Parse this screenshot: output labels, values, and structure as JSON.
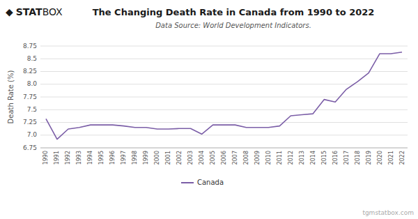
{
  "chart_data": {
    "type": "line",
    "title": "The Changing Death Rate in Canada from 1990 to 2022",
    "subtitle": "Data Source: World Development Indicators.",
    "y_label": "Death Rate (%)",
    "annotations": [
      "◆",
      "STAT",
      "BOX",
      "tgmstatbox.com"
    ],
    "x": [
      1990,
      1991,
      1992,
      1993,
      1994,
      1995,
      1996,
      1997,
      1998,
      1999,
      2000,
      2001,
      2002,
      2003,
      2004,
      2005,
      2006,
      2007,
      2008,
      2009,
      2010,
      2011,
      2012,
      2013,
      2014,
      2015,
      2016,
      2017,
      2018,
      2019,
      2020,
      2021,
      2022
    ],
    "series": [
      {
        "name": "Canada",
        "color": "#7B5EA7",
        "values": [
          7.32,
          6.92,
          7.12,
          7.15,
          7.2,
          7.2,
          7.2,
          7.18,
          7.15,
          7.15,
          7.12,
          7.12,
          7.13,
          7.13,
          7.02,
          7.2,
          7.2,
          7.2,
          7.15,
          7.15,
          7.15,
          7.18,
          7.38,
          7.4,
          7.42,
          7.7,
          7.65,
          7.9,
          8.05,
          8.22,
          8.6,
          8.6,
          8.63
        ]
      }
    ],
    "xlim": [
      1989.5,
      2022.5
    ],
    "xticks": [
      1990,
      1991,
      1992,
      1993,
      1994,
      1995,
      1996,
      1997,
      1998,
      1999,
      2000,
      2001,
      2002,
      2003,
      2004,
      2005,
      2006,
      2007,
      2008,
      2009,
      2010,
      2011,
      2012,
      2013,
      2014,
      2015,
      2016,
      2017,
      2018,
      2019,
      2020,
      2021,
      2022
    ],
    "ylim": [
      6.75,
      8.75
    ],
    "yticks": [
      6.75,
      {
        "value": 7,
        "label": "7.0"
      },
      7.25,
      7.5,
      7.75,
      {
        "value": 8,
        "label": "8.0"
      },
      8.25,
      8.5,
      8.75
    ],
    "grid": true,
    "legend": "bottom"
  }
}
